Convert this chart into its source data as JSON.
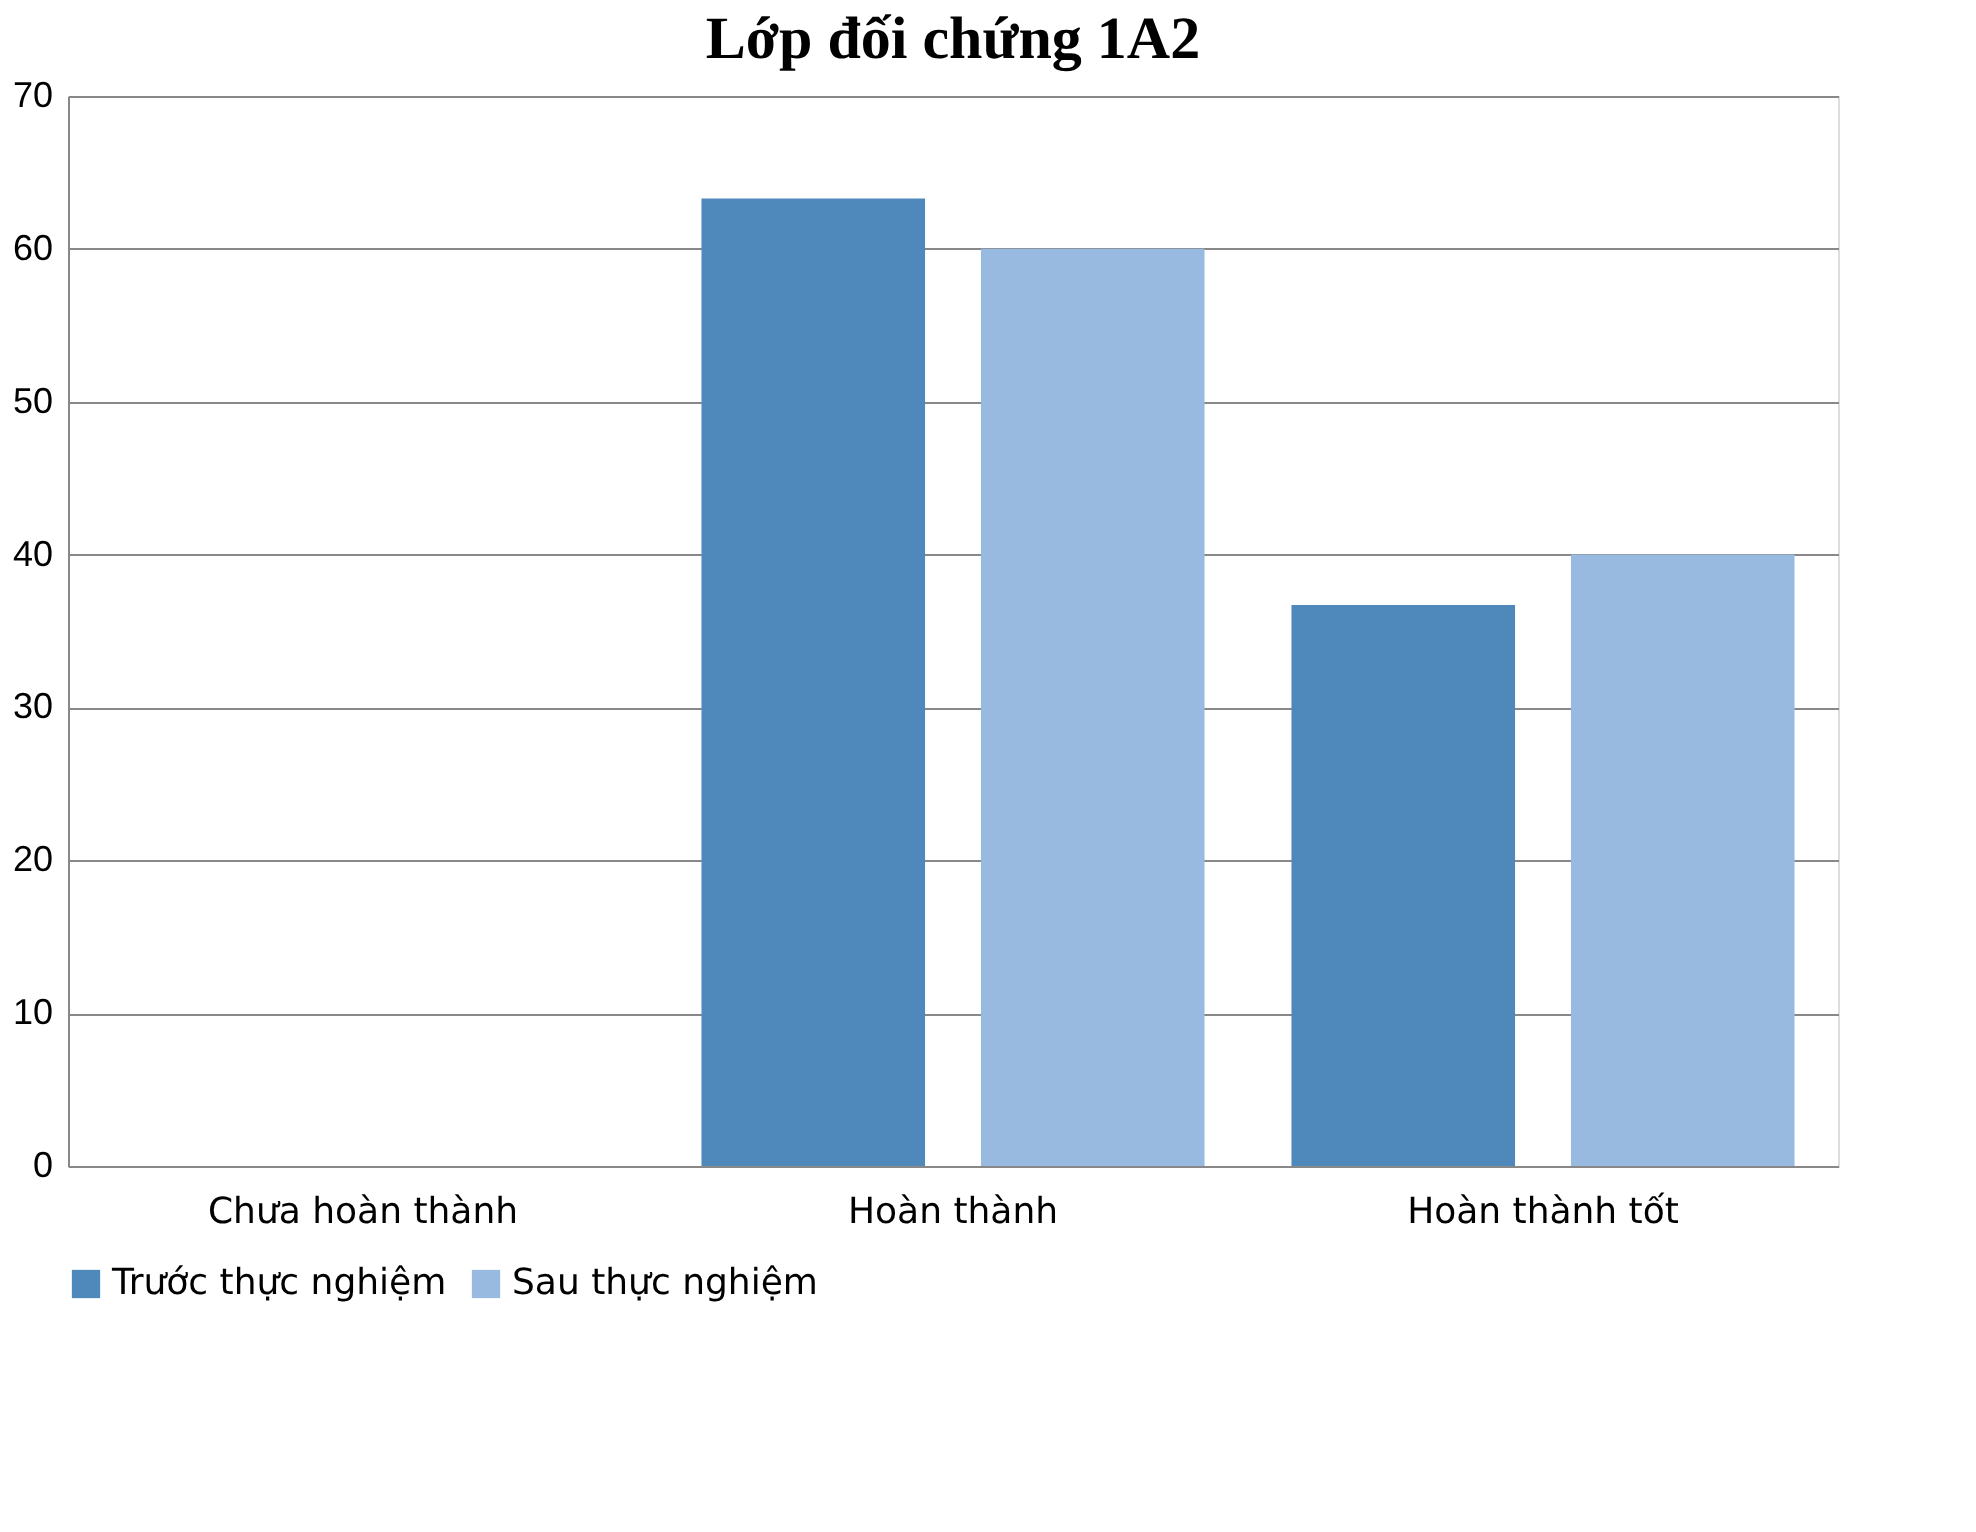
{
  "chart_data": {
    "type": "bar",
    "title": "Lớp đối chứng 1A2",
    "categories": [
      "Chưa hoàn thành",
      "Hoàn thành",
      "Hoàn thành tốt"
    ],
    "series": [
      {
        "name": "Trước thực nghiệm",
        "color": "#4f88bb",
        "values": [
          0,
          63.3,
          36.7
        ]
      },
      {
        "name": "Sau thực nghiệm",
        "color": "#98b9e0",
        "values": [
          0,
          60,
          40
        ]
      }
    ],
    "ylim": [
      0,
      70
    ],
    "yticks": [
      0,
      10,
      20,
      30,
      40,
      50,
      60,
      70
    ],
    "grid": "y",
    "legend": "bottom"
  }
}
